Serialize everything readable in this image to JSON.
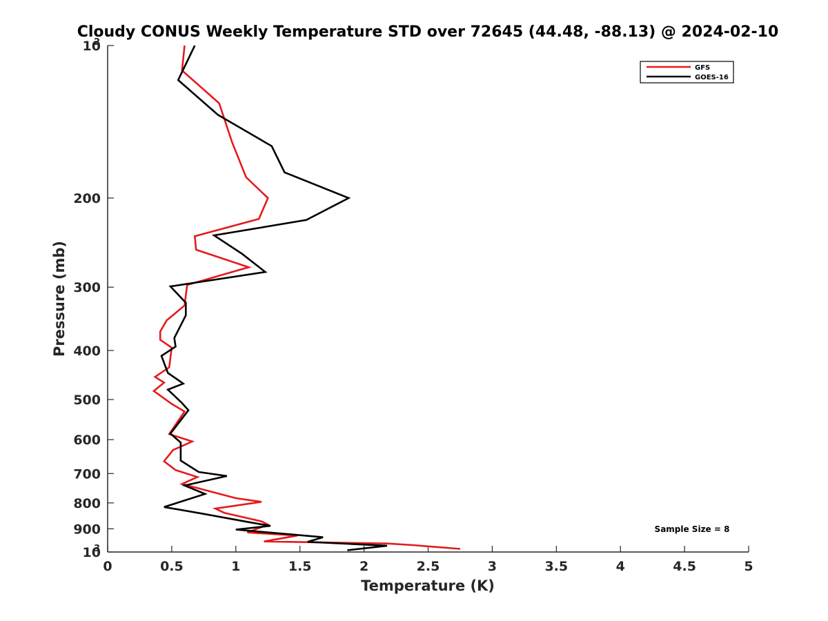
{
  "chart_data": {
    "type": "line",
    "title": "Cloudy CONUS Weekly Temperature STD over 72645 (44.48, -88.13) @ 2024-02-10",
    "xlabel": "Temperature (K)",
    "ylabel": "Pressure (mb)",
    "xlim": [
      0,
      5
    ],
    "ylim": [
      100,
      1000
    ],
    "y_scale": "log",
    "y_reversed": true,
    "grid": false,
    "legend_position": "top-right",
    "x_ticks": [
      "0",
      "0.5",
      "1",
      "1.5",
      "2",
      "2.5",
      "3",
      "3.5",
      "4",
      "4.5",
      "5"
    ],
    "x_tick_values": [
      0,
      0.5,
      1,
      1.5,
      2,
      2.5,
      3,
      3.5,
      4,
      4.5,
      5
    ],
    "y_ticks": [
      {
        "value": 100,
        "base": "10",
        "exp": "2",
        "text": ""
      },
      {
        "value": 200,
        "text": "200"
      },
      {
        "value": 300,
        "text": "300"
      },
      {
        "value": 400,
        "text": "400"
      },
      {
        "value": 500,
        "text": "500"
      },
      {
        "value": 600,
        "text": "600"
      },
      {
        "value": 700,
        "text": "700"
      },
      {
        "value": 800,
        "text": "800"
      },
      {
        "value": 900,
        "text": "900"
      },
      {
        "value": 1000,
        "base": "10",
        "exp": "3",
        "text": ""
      }
    ],
    "annotation": "Sample Size = 8",
    "series": [
      {
        "name": "GFS",
        "color": "#e41a1c",
        "points": [
          [
            0.6,
            100
          ],
          [
            0.58,
            112
          ],
          [
            0.87,
            130
          ],
          [
            0.97,
            155
          ],
          [
            1.08,
            182
          ],
          [
            1.25,
            200
          ],
          [
            1.18,
            220
          ],
          [
            0.68,
            238
          ],
          [
            0.69,
            253
          ],
          [
            1.1,
            274
          ],
          [
            0.62,
            297
          ],
          [
            0.6,
            326
          ],
          [
            0.46,
            349
          ],
          [
            0.41,
            367
          ],
          [
            0.41,
            381
          ],
          [
            0.5,
            395
          ],
          [
            0.48,
            432
          ],
          [
            0.37,
            451
          ],
          [
            0.44,
            463
          ],
          [
            0.36,
            481
          ],
          [
            0.5,
            510
          ],
          [
            0.6,
            528
          ],
          [
            0.48,
            585
          ],
          [
            0.66,
            605
          ],
          [
            0.51,
            629
          ],
          [
            0.44,
            662
          ],
          [
            0.53,
            689
          ],
          [
            0.7,
            711
          ],
          [
            0.58,
            734
          ],
          [
            1.0,
            783
          ],
          [
            1.2,
            796
          ],
          [
            0.84,
            821
          ],
          [
            0.91,
            837
          ],
          [
            1.2,
            870
          ],
          [
            1.25,
            883
          ],
          [
            1.09,
            915
          ],
          [
            1.48,
            928
          ],
          [
            1.22,
            953
          ],
          [
            2.18,
            962
          ],
          [
            2.38,
            969
          ],
          [
            2.75,
            986
          ]
        ]
      },
      {
        "name": "GOES-16",
        "color": "#000000",
        "points": [
          [
            0.68,
            100
          ],
          [
            0.55,
            117
          ],
          [
            0.86,
            137
          ],
          [
            1.28,
            158
          ],
          [
            1.38,
            178
          ],
          [
            1.88,
            200
          ],
          [
            1.55,
            221
          ],
          [
            0.83,
            237
          ],
          [
            1.05,
            258
          ],
          [
            1.23,
            280
          ],
          [
            0.49,
            299
          ],
          [
            0.61,
            322
          ],
          [
            0.61,
            341
          ],
          [
            0.52,
            378
          ],
          [
            0.53,
            393
          ],
          [
            0.42,
            410
          ],
          [
            0.47,
            443
          ],
          [
            0.59,
            465
          ],
          [
            0.47,
            478
          ],
          [
            0.58,
            508
          ],
          [
            0.63,
            525
          ],
          [
            0.49,
            584
          ],
          [
            0.57,
            608
          ],
          [
            0.57,
            660
          ],
          [
            0.71,
            695
          ],
          [
            0.93,
            708
          ],
          [
            0.6,
            739
          ],
          [
            0.76,
            768
          ],
          [
            0.44,
            815
          ],
          [
            0.75,
            841
          ],
          [
            1.1,
            873
          ],
          [
            1.27,
            888
          ],
          [
            1.0,
            903
          ],
          [
            1.68,
            935
          ],
          [
            1.56,
            955
          ],
          [
            2.18,
            972
          ],
          [
            1.87,
            992
          ]
        ]
      }
    ]
  }
}
